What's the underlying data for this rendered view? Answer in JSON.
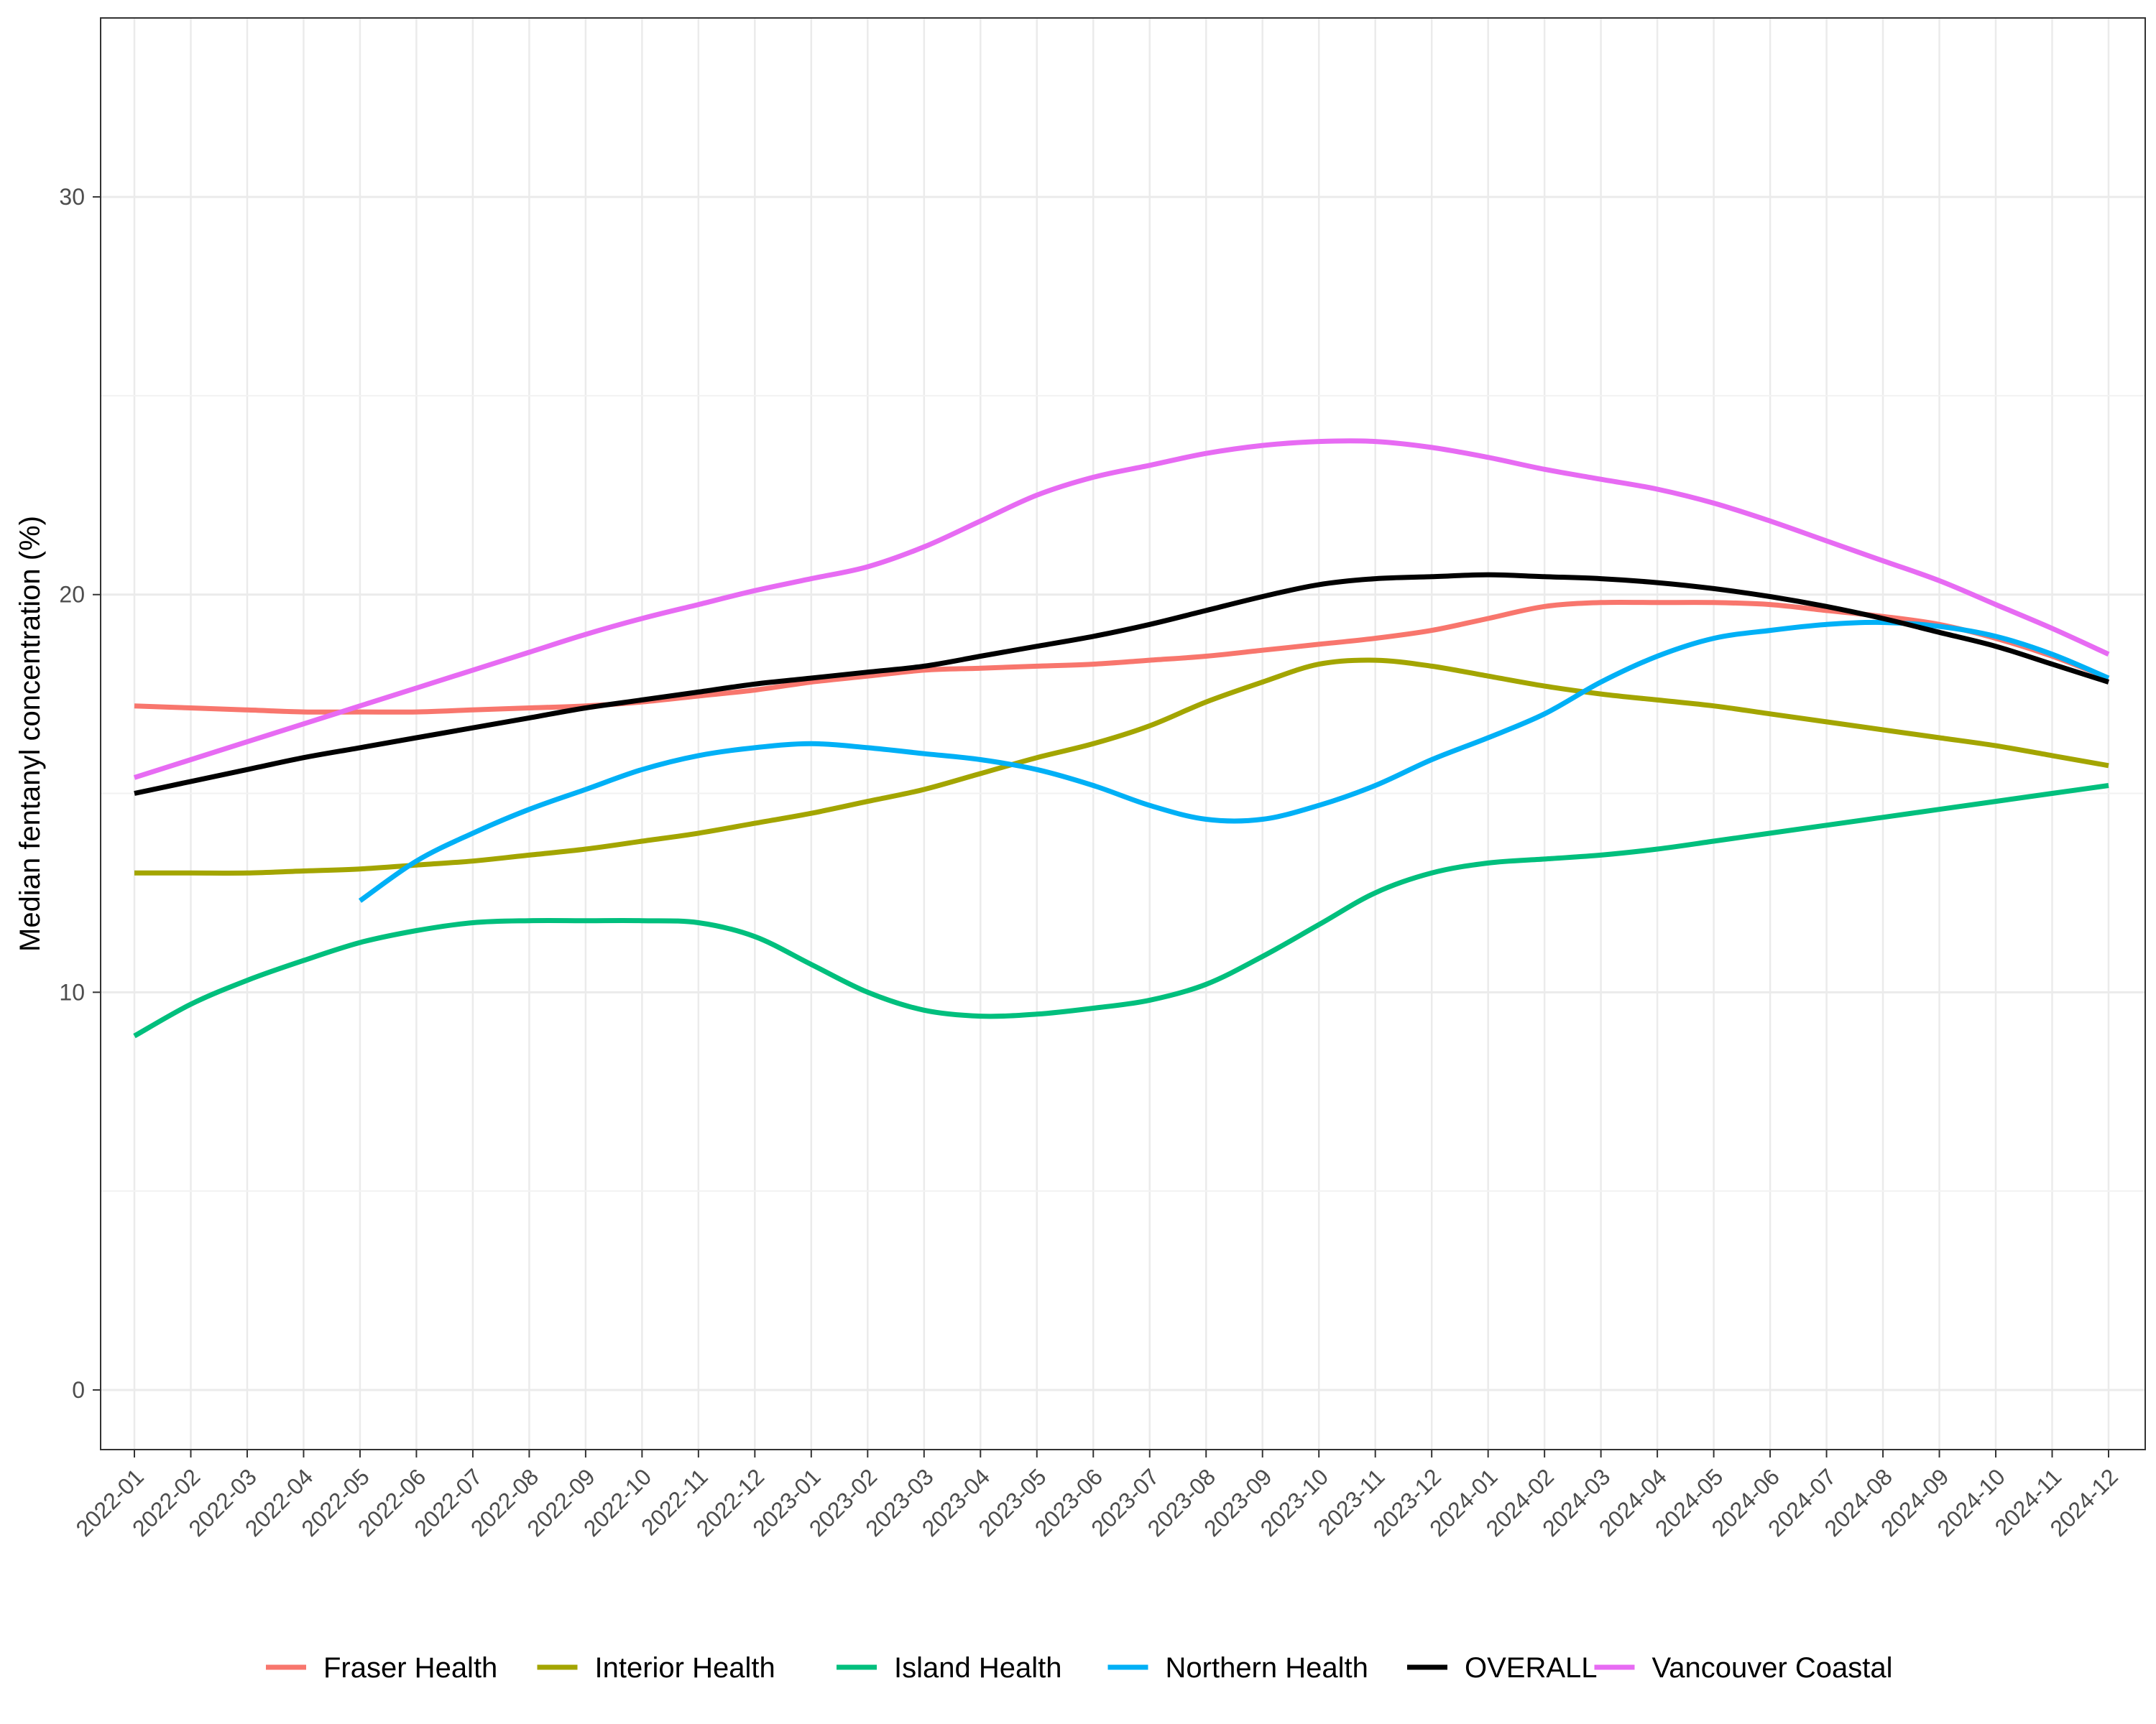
{
  "chart_data": {
    "type": "line",
    "title": "",
    "xlabel": "",
    "ylabel": "Median fentanyl concentration (%)",
    "ylim": [
      -1.5,
      34.5
    ],
    "y_ticks": [
      0,
      10,
      20,
      30
    ],
    "grid": true,
    "legend_position": "bottom",
    "categories": [
      "2022-01",
      "2022-02",
      "2022-03",
      "2022-04",
      "2022-05",
      "2022-06",
      "2022-07",
      "2022-08",
      "2022-09",
      "2022-10",
      "2022-11",
      "2022-12",
      "2023-01",
      "2023-02",
      "2023-03",
      "2023-04",
      "2023-05",
      "2023-06",
      "2023-07",
      "2023-08",
      "2023-09",
      "2023-10",
      "2023-11",
      "2023-12",
      "2024-01",
      "2024-02",
      "2024-03",
      "2024-04",
      "2024-05",
      "2024-06",
      "2024-07",
      "2024-08",
      "2024-09",
      "2024-10",
      "2024-11",
      "2024-12"
    ],
    "series": [
      {
        "name": "Fraser Health",
        "color": "#F8766D",
        "values": [
          17.2,
          17.15,
          17.1,
          17.05,
          17.05,
          17.05,
          17.1,
          17.15,
          17.2,
          17.3,
          17.45,
          17.6,
          17.8,
          17.95,
          18.1,
          18.15,
          18.2,
          18.25,
          18.35,
          18.45,
          18.6,
          18.75,
          18.9,
          19.1,
          19.4,
          19.7,
          19.8,
          19.8,
          19.8,
          19.75,
          19.6,
          19.45,
          19.25,
          18.9,
          18.45,
          17.9
        ]
      },
      {
        "name": "Interior Health",
        "color": "#A3A500",
        "values": [
          13.0,
          13.0,
          13.0,
          13.05,
          13.1,
          13.2,
          13.3,
          13.45,
          13.6,
          13.8,
          14.0,
          14.25,
          14.5,
          14.8,
          15.1,
          15.5,
          15.9,
          16.25,
          16.7,
          17.3,
          17.8,
          18.25,
          18.35,
          18.2,
          17.95,
          17.7,
          17.5,
          17.35,
          17.2,
          17.0,
          16.8,
          16.6,
          16.4,
          16.2,
          15.95,
          15.7
        ]
      },
      {
        "name": "Island Health",
        "color": "#00BF7D",
        "values": [
          8.9,
          9.7,
          10.3,
          10.8,
          11.25,
          11.55,
          11.75,
          11.8,
          11.8,
          11.8,
          11.75,
          11.4,
          10.7,
          10.0,
          9.55,
          9.4,
          9.45,
          9.6,
          9.8,
          10.2,
          10.9,
          11.7,
          12.5,
          13.0,
          13.25,
          13.35,
          13.45,
          13.6,
          13.8,
          14.0,
          14.2,
          14.4,
          14.6,
          14.8,
          15.0,
          15.2
        ]
      },
      {
        "name": "Northern Health",
        "color": "#00B0F6",
        "values": [
          null,
          null,
          null,
          null,
          12.3,
          13.3,
          14.0,
          14.6,
          15.1,
          15.6,
          15.95,
          16.15,
          16.25,
          16.15,
          16.0,
          15.85,
          15.6,
          15.2,
          14.7,
          14.35,
          14.35,
          14.7,
          15.2,
          15.85,
          16.4,
          17.0,
          17.8,
          18.45,
          18.9,
          19.1,
          19.25,
          19.3,
          19.2,
          18.95,
          18.5,
          17.9
        ]
      },
      {
        "name": "OVERALL",
        "color": "#000000",
        "values": [
          15.0,
          15.3,
          15.6,
          15.9,
          16.15,
          16.4,
          16.65,
          16.9,
          17.15,
          17.35,
          17.55,
          17.75,
          17.9,
          18.05,
          18.2,
          18.45,
          18.7,
          18.95,
          19.25,
          19.6,
          19.95,
          20.25,
          20.4,
          20.45,
          20.5,
          20.45,
          20.4,
          20.3,
          20.15,
          19.95,
          19.7,
          19.4,
          19.05,
          18.7,
          18.25,
          17.8
        ]
      },
      {
        "name": "Vancouver Coastal",
        "color": "#E76BF3",
        "values": [
          15.4,
          15.85,
          16.3,
          16.75,
          17.2,
          17.65,
          18.1,
          18.55,
          19.0,
          19.4,
          19.75,
          20.1,
          20.4,
          20.7,
          21.2,
          21.85,
          22.5,
          22.95,
          23.25,
          23.55,
          23.75,
          23.85,
          23.85,
          23.7,
          23.45,
          23.15,
          22.9,
          22.65,
          22.3,
          21.85,
          21.35,
          20.85,
          20.35,
          19.75,
          19.15,
          18.5
        ]
      }
    ]
  }
}
